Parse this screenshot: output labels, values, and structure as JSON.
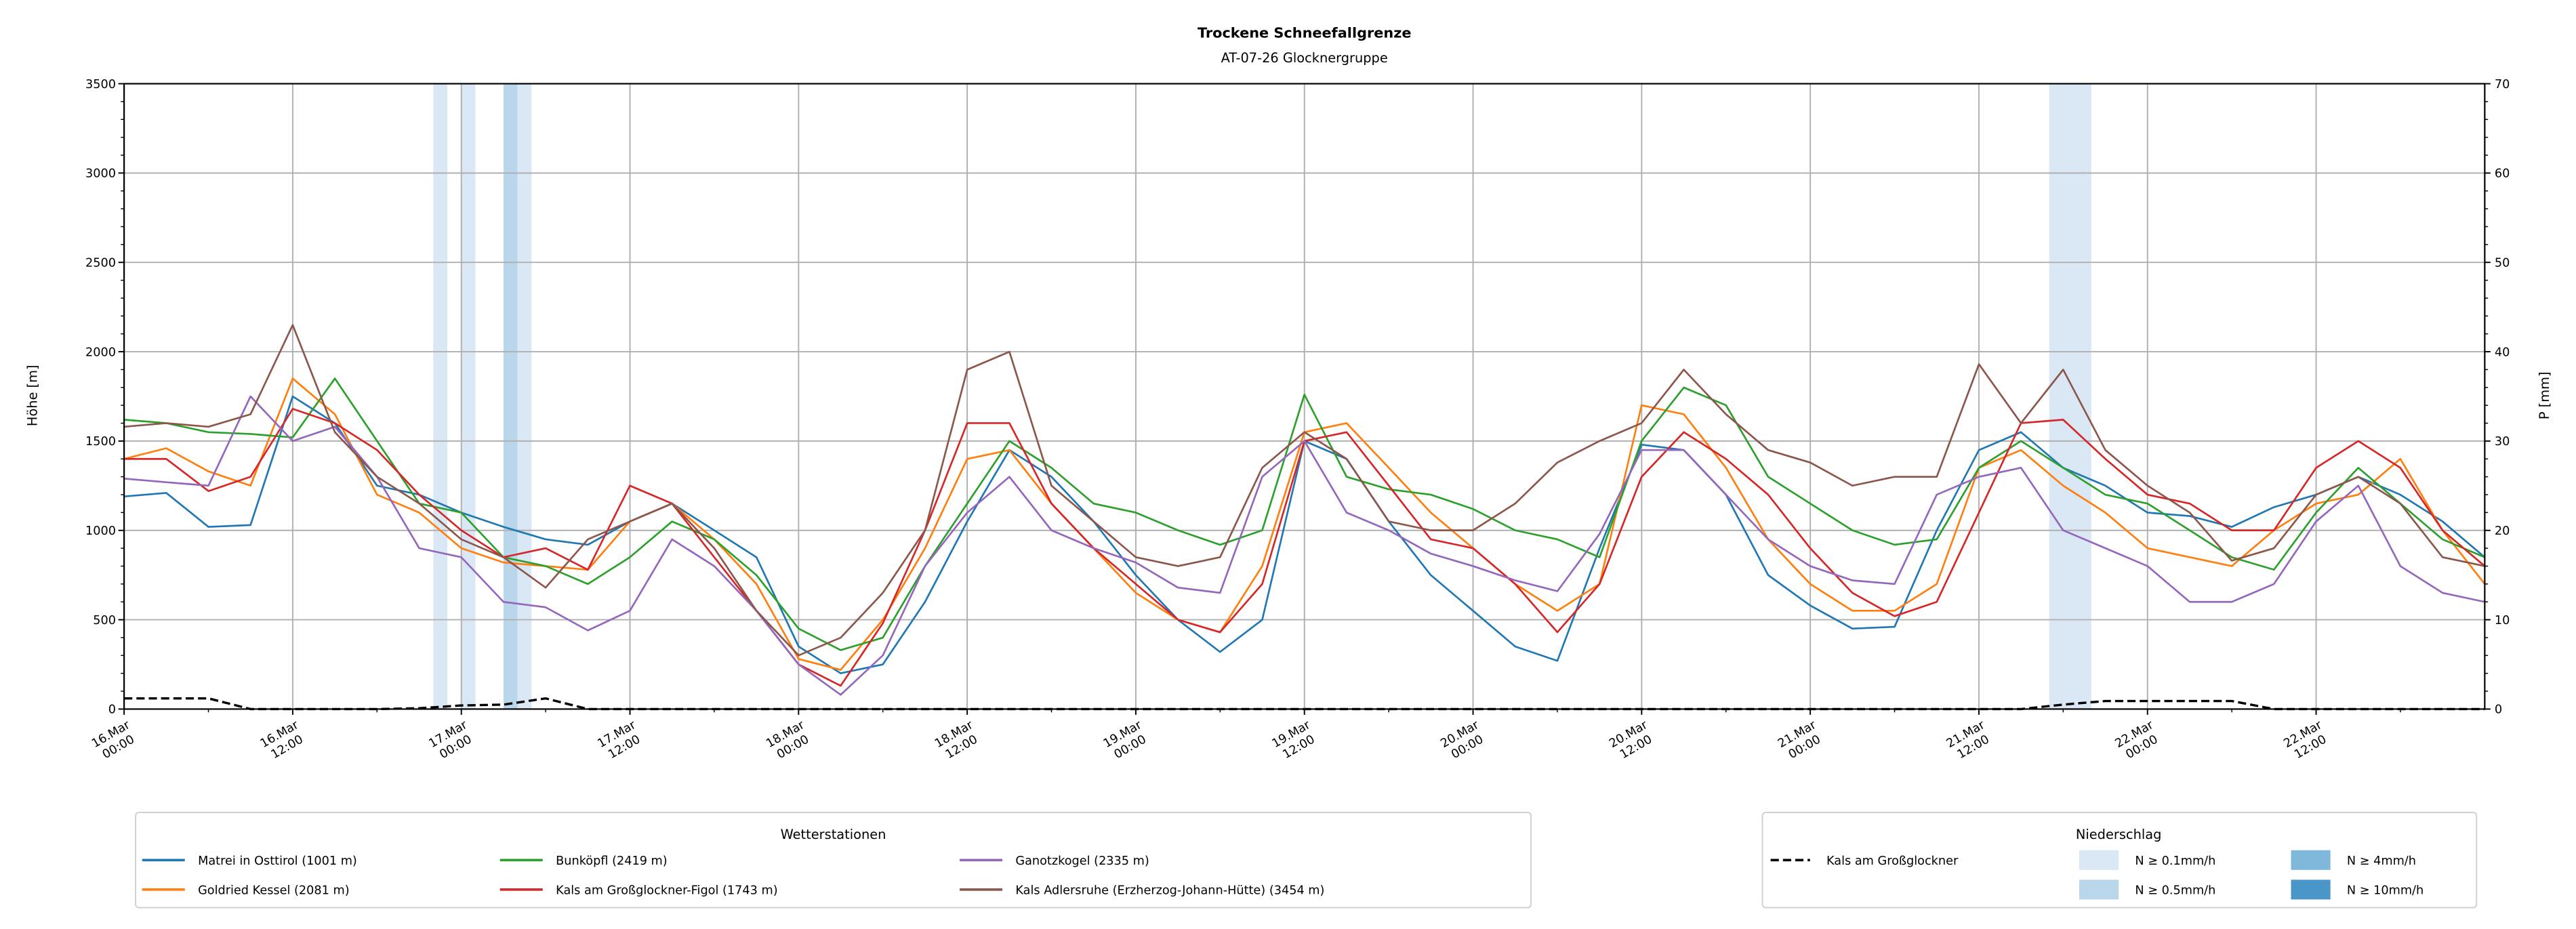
{
  "chart_data": {
    "type": "line",
    "title": "Trockene Schneefallgrenze",
    "subtitle": "AT-07-26 Glocknergruppe",
    "ylabel": "Höhe [m]",
    "ylabel_right": "P [mm]",
    "ylim": [
      0,
      3500
    ],
    "ylim_right": [
      0,
      70
    ],
    "yticks": [
      "0",
      "500",
      "1000",
      "1500",
      "2000",
      "2500",
      "3000",
      "3500"
    ],
    "yticks_right": [
      "0",
      "10",
      "20",
      "30",
      "40",
      "50",
      "60",
      "70"
    ],
    "grid": true,
    "x_unit": "hours since 16.Mar 00:00",
    "xlim": [
      0,
      168
    ],
    "step_hours": 3,
    "xticks": [
      {
        "date": "16.Mar",
        "time": "00:00"
      },
      {
        "date": "16.Mar",
        "time": "12:00"
      },
      {
        "date": "17.Mar",
        "time": "00:00"
      },
      {
        "date": "17.Mar",
        "time": "12:00"
      },
      {
        "date": "18.Mar",
        "time": "00:00"
      },
      {
        "date": "18.Mar",
        "time": "12:00"
      },
      {
        "date": "19.Mar",
        "time": "00:00"
      },
      {
        "date": "19.Mar",
        "time": "12:00"
      },
      {
        "date": "20.Mar",
        "time": "00:00"
      },
      {
        "date": "20.Mar",
        "time": "12:00"
      },
      {
        "date": "21.Mar",
        "time": "00:00"
      },
      {
        "date": "21.Mar",
        "time": "12:00"
      },
      {
        "date": "22.Mar",
        "time": "00:00"
      },
      {
        "date": "22.Mar",
        "time": "12:00"
      }
    ],
    "series": [
      {
        "name": "Matrei in Osttirol (1001 m)",
        "color": "#1f77b4",
        "values": [
          1190,
          1210,
          1020,
          1030,
          1750,
          1600,
          1250,
          1200,
          1100,
          1020,
          950,
          920,
          1050,
          1150,
          1000,
          850,
          350,
          200,
          250,
          600,
          1050,
          1450,
          1300,
          1050,
          750,
          500,
          320,
          500,
          1500,
          1400,
          1050,
          750,
          550,
          350,
          270,
          900,
          1480,
          1450,
          1200,
          750,
          580,
          450,
          460,
          1000,
          1450,
          1550,
          1350,
          1250,
          1100,
          1080,
          1020,
          1130,
          1200,
          1300,
          1200,
          1050,
          850
        ]
      },
      {
        "name": "Goldried Kessel (2081 m)",
        "color": "#ff7f0e",
        "values": [
          1400,
          1460,
          1330,
          1250,
          1850,
          1650,
          1200,
          1100,
          900,
          820,
          800,
          780,
          1050,
          1150,
          950,
          700,
          280,
          220,
          500,
          900,
          1400,
          1450,
          1150,
          900,
          650,
          500,
          430,
          800,
          1550,
          1600,
          1350,
          1100,
          900,
          700,
          550,
          700,
          1700,
          1650,
          1350,
          950,
          700,
          550,
          550,
          700,
          1350,
          1450,
          1250,
          1100,
          900,
          850,
          800,
          1000,
          1150,
          1200,
          1400,
          1000,
          700
        ]
      },
      {
        "name": "Bunköpfl (2419 m)",
        "color": "#2ca02c",
        "values": [
          1620,
          1600,
          1550,
          1540,
          1520,
          1850,
          1500,
          1150,
          1100,
          850,
          800,
          700,
          850,
          1050,
          950,
          750,
          450,
          330,
          400,
          800,
          1150,
          1500,
          1350,
          1150,
          1100,
          1000,
          920,
          1000,
          1760,
          1300,
          1230,
          1200,
          1120,
          1000,
          950,
          850,
          1500,
          1800,
          1700,
          1300,
          1150,
          1000,
          920,
          950,
          1350,
          1500,
          1350,
          1200,
          1150,
          1000,
          850,
          780,
          1100,
          1350,
          1150,
          950,
          850
        ]
      },
      {
        "name": "Kals am Großglockner-Figol (1743 m)",
        "color": "#d62728",
        "values": [
          1400,
          1400,
          1220,
          1300,
          1680,
          1600,
          1450,
          1200,
          1000,
          850,
          900,
          780,
          1250,
          1150,
          850,
          550,
          250,
          130,
          480,
          1000,
          1600,
          1600,
          1150,
          900,
          700,
          500,
          430,
          700,
          1500,
          1550,
          1250,
          950,
          900,
          700,
          430,
          700,
          1300,
          1550,
          1400,
          1200,
          900,
          650,
          520,
          600,
          1100,
          1600,
          1620,
          1400,
          1200,
          1150,
          1000,
          1000,
          1350,
          1500,
          1350,
          1000,
          800
        ]
      },
      {
        "name": "Ganotzkogel (2335 m)",
        "color": "#9467bd",
        "values": [
          1290,
          1270,
          1250,
          1750,
          1500,
          1580,
          1300,
          900,
          850,
          600,
          570,
          440,
          550,
          950,
          800,
          550,
          250,
          80,
          300,
          800,
          1100,
          1300,
          1000,
          900,
          820,
          680,
          650,
          1300,
          1500,
          1100,
          1000,
          870,
          800,
          720,
          660,
          980,
          1450,
          1450,
          1200,
          950,
          800,
          720,
          700,
          1200,
          1300,
          1350,
          1000,
          900,
          800,
          600,
          600,
          700,
          1050,
          1250,
          800,
          650,
          600
        ]
      },
      {
        "name": "Kals Adlersruhe (Erzherzog-Johann-Hütte) (3454 m)",
        "color": "#8c564b",
        "values": [
          1580,
          1600,
          1580,
          1650,
          2150,
          1550,
          1300,
          1150,
          950,
          850,
          680,
          950,
          1050,
          1150,
          900,
          550,
          300,
          400,
          650,
          1000,
          1900,
          2000,
          1250,
          1050,
          850,
          800,
          850,
          1350,
          1550,
          1400,
          1050,
          1000,
          1000,
          1150,
          1380,
          1500,
          1600,
          1900,
          1650,
          1450,
          1380,
          1250,
          1300,
          1300,
          1930,
          1600,
          1900,
          1450,
          1250,
          1100,
          830,
          900,
          1200,
          1300,
          1150,
          850,
          800
        ]
      }
    ],
    "precip_series": {
      "name": "Kals am Großglockner",
      "color": "#000000",
      "style": "dashed",
      "axis": "right",
      "values": [
        1.2,
        1.2,
        1.2,
        0,
        0,
        0,
        0,
        0.1,
        0.4,
        0.5,
        1.2,
        0,
        0,
        0,
        0,
        0,
        0,
        0,
        0,
        0,
        0,
        0,
        0,
        0,
        0,
        0,
        0,
        0,
        0,
        0,
        0,
        0,
        0,
        0,
        0,
        0,
        0,
        0,
        0,
        0,
        0,
        0,
        0,
        0,
        0,
        0,
        0.5,
        0.9,
        0.9,
        0.9,
        0.9,
        0,
        0,
        0,
        0,
        0,
        0
      ]
    },
    "precip_bands": [
      {
        "start_h": 22,
        "end_h": 23,
        "class": "0.1"
      },
      {
        "start_h": 24,
        "end_h": 25,
        "class": "0.1"
      },
      {
        "start_h": 27,
        "end_h": 28,
        "class": "0.5"
      },
      {
        "start_h": 28,
        "end_h": 29,
        "class": "0.1"
      },
      {
        "start_h": 137,
        "end_h": 140,
        "class": "0.1"
      }
    ],
    "legend_stations": {
      "title": "Wetterstationen",
      "placement": "bottom-left"
    },
    "legend_precip": {
      "title": "Niederschlag",
      "placement": "bottom-right",
      "line_label": "Kals am Großglockner",
      "classes": [
        {
          "key": "0.1",
          "label": "N ≥ 0.1mm/h",
          "color": "#dae8f5"
        },
        {
          "key": "0.5",
          "label": "N ≥ 0.5mm/h",
          "color": "#bad6ea"
        },
        {
          "key": "4",
          "label": "N ≥ 4mm/h",
          "color": "#7fb8da"
        },
        {
          "key": "10",
          "label": "N ≥ 10mm/h",
          "color": "#4a96c9"
        }
      ]
    }
  }
}
